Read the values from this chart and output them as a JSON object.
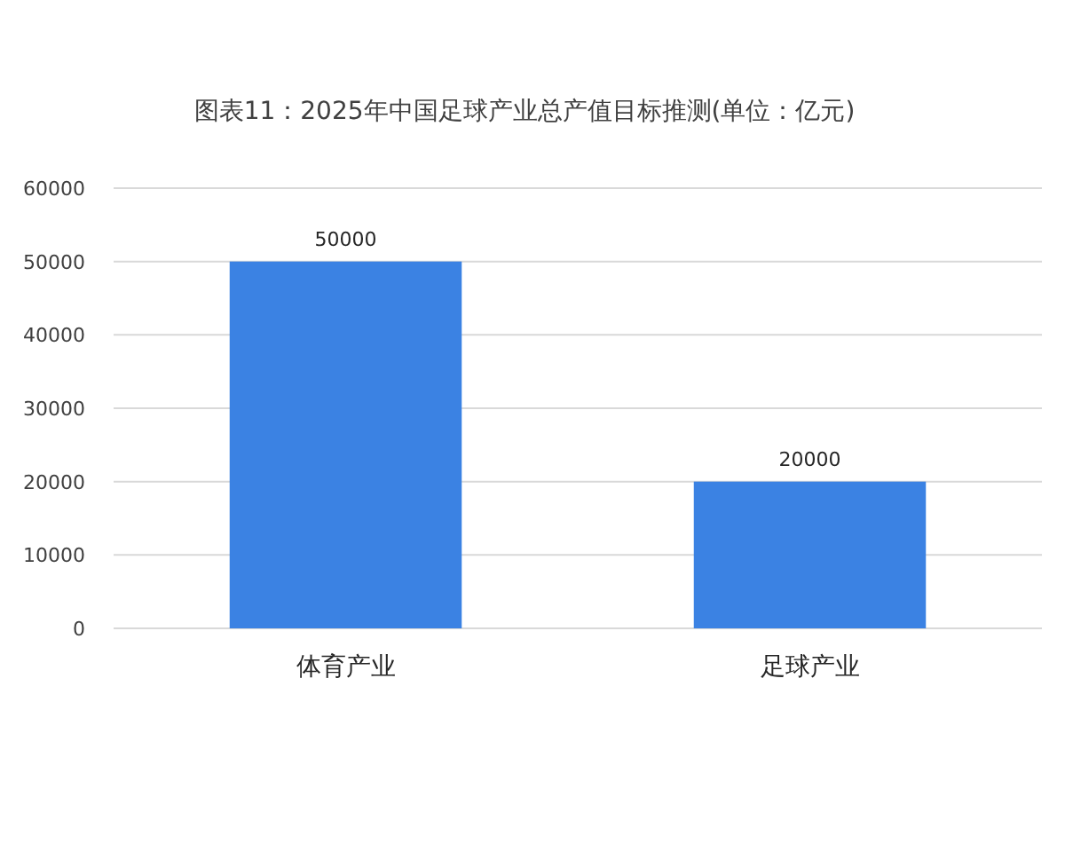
{
  "chart_data": {
    "type": "bar",
    "title": "图表11：2025年中国足球产业总产值目标推测(单位：亿元)",
    "categories": [
      "体育产业",
      "足球产业"
    ],
    "values": [
      50000,
      20000
    ],
    "color": "#3b82e3",
    "ylim": [
      0,
      60000
    ],
    "yticks": [
      0,
      10000,
      20000,
      30000,
      40000,
      50000,
      60000
    ],
    "grid": "y",
    "data_labels": true
  }
}
